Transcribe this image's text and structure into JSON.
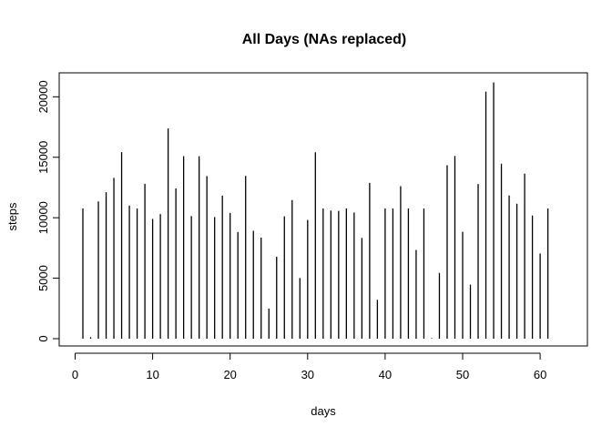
{
  "chart_data": {
    "type": "bar",
    "title": "All Days (NAs replaced)",
    "xlabel": "days",
    "ylabel": "steps",
    "xlim": [
      0,
      62
    ],
    "ylim": [
      0,
      21200
    ],
    "x_ticks": [
      0,
      10,
      20,
      30,
      40,
      50,
      60
    ],
    "y_ticks": [
      0,
      5000,
      10000,
      15000,
      20000
    ],
    "grid": false,
    "x": [
      1,
      2,
      3,
      4,
      5,
      6,
      7,
      8,
      9,
      10,
      11,
      12,
      13,
      14,
      15,
      16,
      17,
      18,
      19,
      20,
      21,
      22,
      23,
      24,
      25,
      26,
      27,
      28,
      29,
      30,
      31,
      32,
      33,
      34,
      35,
      36,
      37,
      38,
      39,
      40,
      41,
      42,
      43,
      44,
      45,
      46,
      47,
      48,
      49,
      50,
      51,
      52,
      53,
      54,
      55,
      56,
      57,
      58,
      59,
      60,
      61
    ],
    "values": [
      10766,
      126,
      11352,
      12116,
      13294,
      15420,
      11015,
      10766,
      12811,
      9900,
      10304,
      17382,
      12426,
      15098,
      10139,
      15084,
      13452,
      10056,
      11829,
      10395,
      8821,
      13460,
      8918,
      8355,
      2492,
      6778,
      10119,
      11458,
      5018,
      9819,
      15414,
      10766,
      10600,
      10571,
      10766,
      10439,
      8334,
      12883,
      3219,
      10766,
      10766,
      12608,
      10765,
      7336,
      10766,
      41,
      5441,
      14339,
      15110,
      8841,
      4472,
      12787,
      20427,
      21194,
      14478,
      11834,
      11162,
      13646,
      10183,
      7047,
      10766
    ]
  }
}
